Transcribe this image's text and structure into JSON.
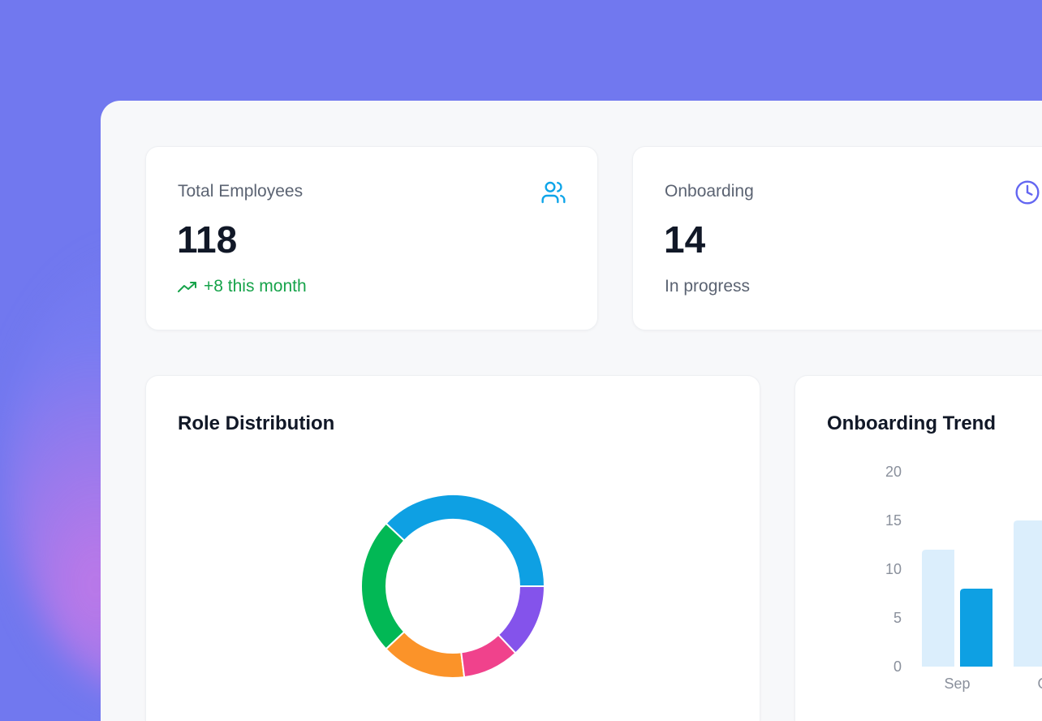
{
  "stats": [
    {
      "label": "Total Employees",
      "value": "118",
      "sub": "+8 this month",
      "icon": "users-icon",
      "trend": "up",
      "icon_color": "#0ea5e9"
    },
    {
      "label": "Onboarding",
      "value": "14",
      "sub": "In progress",
      "icon": "clock-icon",
      "icon_color": "#6366f1"
    }
  ],
  "role_card": {
    "title": "Role Distribution"
  },
  "trend_card": {
    "title": "Onboarding Trend"
  },
  "chart_data": [
    {
      "type": "pie",
      "variant": "donut",
      "values": [
        38,
        24,
        15,
        10,
        13
      ],
      "colors": [
        "#0ea0e3",
        "#02b855",
        "#fb9329",
        "#f0428c",
        "#8453eb"
      ]
    },
    {
      "type": "bar",
      "categories": [
        "Sep",
        "Oct"
      ],
      "ylim": [
        0,
        20
      ],
      "yticks": [
        0,
        5,
        10,
        15,
        20
      ],
      "series": [
        {
          "values": [
            12,
            15
          ],
          "color": "#dbeefc"
        },
        {
          "values": [
            8,
            null
          ],
          "color": "#0ea0e3"
        }
      ]
    }
  ]
}
